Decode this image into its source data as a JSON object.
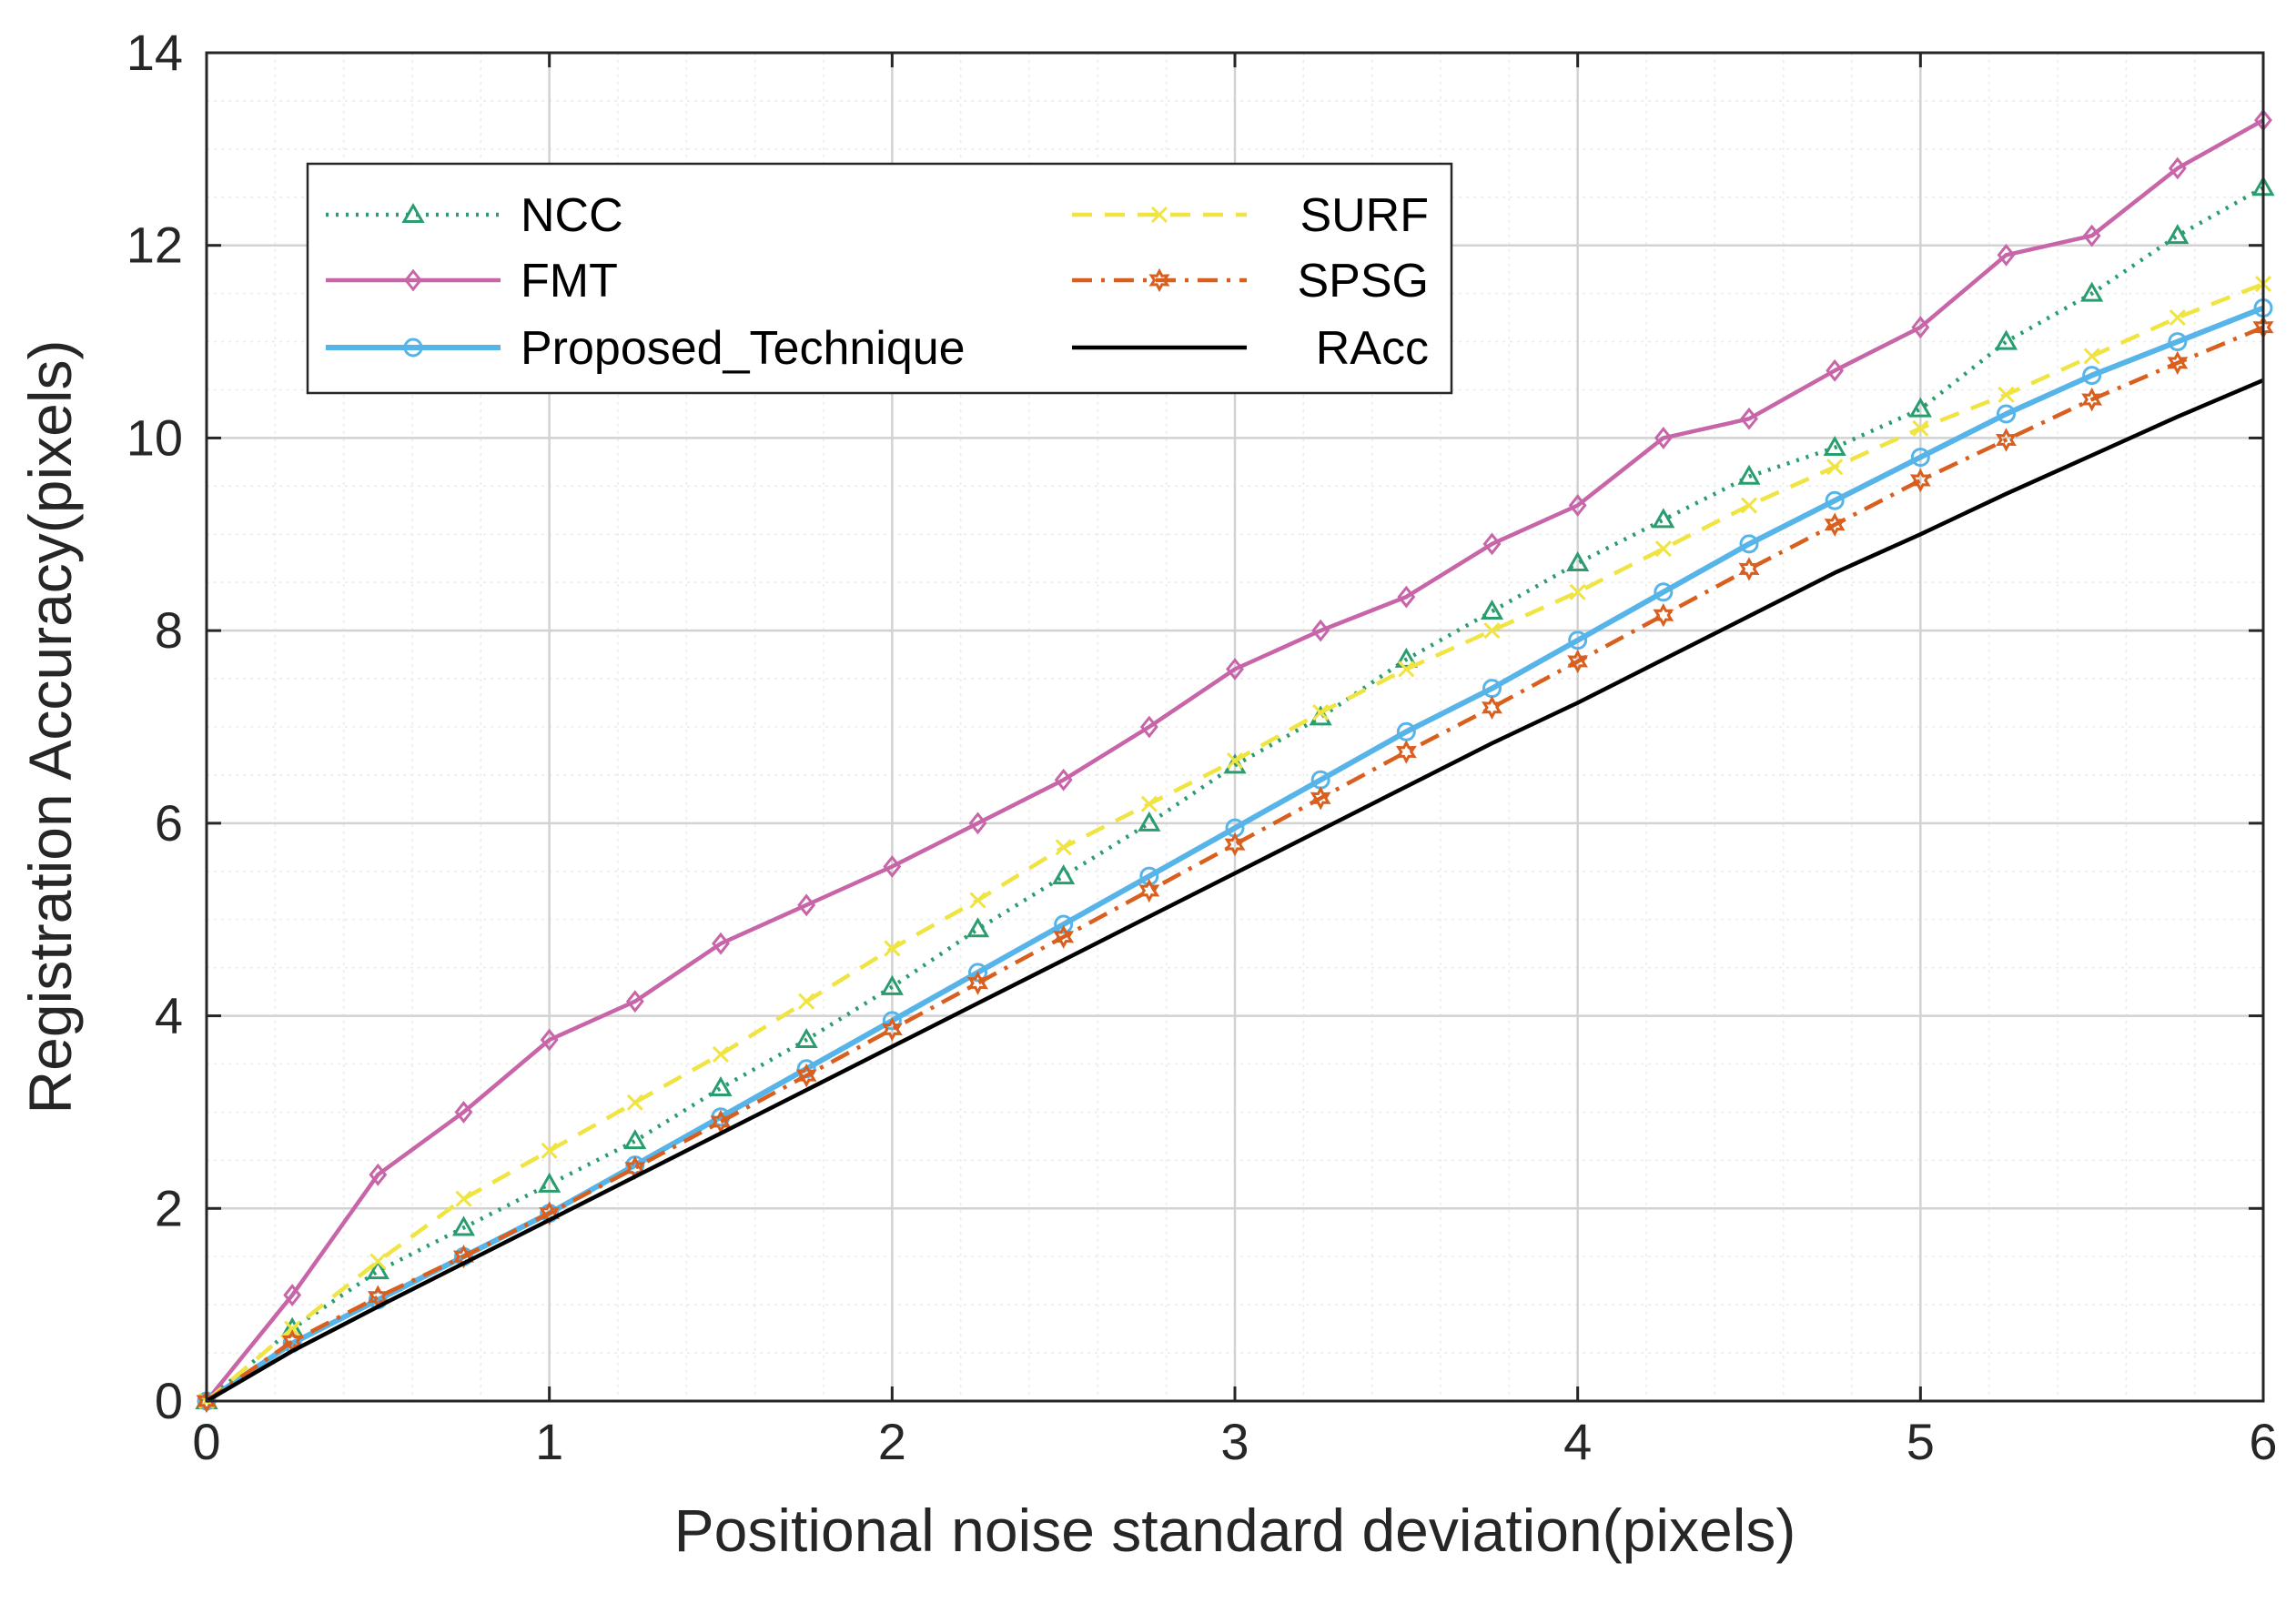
{
  "chart_data": {
    "type": "line",
    "title": "",
    "xlabel": "Positional noise standard deviation(pixels)",
    "ylabel": "Registration Accuracy(pixels)",
    "xlim": [
      0,
      6
    ],
    "ylim": [
      0,
      14
    ],
    "xticks": [
      0,
      1,
      2,
      3,
      4,
      5,
      6
    ],
    "yticks": [
      0,
      2,
      4,
      6,
      8,
      10,
      12,
      14
    ],
    "xtick_labels": [
      "0",
      "1",
      "2",
      "3",
      "4",
      "5",
      "6"
    ],
    "ytick_labels": [
      "0",
      "2",
      "4",
      "6",
      "8",
      "10",
      "12",
      "14"
    ],
    "grid": true,
    "minor_grid": true,
    "legend_position": "top-left",
    "x": [
      0,
      0.25,
      0.5,
      0.75,
      1,
      1.25,
      1.5,
      1.75,
      2,
      2.25,
      2.5,
      2.75,
      3,
      3.25,
      3.5,
      3.75,
      4,
      4.25,
      4.5,
      4.75,
      5,
      5.25,
      5.5,
      5.75,
      6
    ],
    "series": [
      {
        "name": "NCC",
        "color": "#2a9d6f",
        "dash": "dotted",
        "marker": "triangle",
        "values": [
          0,
          0.75,
          1.35,
          1.8,
          2.25,
          2.7,
          3.25,
          3.75,
          4.3,
          4.9,
          5.45,
          6.0,
          6.6,
          7.1,
          7.7,
          8.2,
          8.7,
          9.15,
          9.6,
          9.9,
          10.3,
          11.0,
          11.5,
          12.1,
          12.6
        ]
      },
      {
        "name": "FMT",
        "color": "#c765a8",
        "dash": "solid",
        "marker": "diamond",
        "values": [
          0,
          1.1,
          2.35,
          3.0,
          3.75,
          4.15,
          4.75,
          5.15,
          5.55,
          6.0,
          6.45,
          7.0,
          7.6,
          8.0,
          8.35,
          8.9,
          9.3,
          10.0,
          10.2,
          10.7,
          11.15,
          11.9,
          12.1,
          12.8,
          13.3
        ]
      },
      {
        "name": "Proposed_Technique",
        "color": "#56b4e9",
        "dash": "solid",
        "marker": "circle",
        "values": [
          0,
          0.6,
          1.05,
          1.5,
          1.95,
          2.45,
          2.95,
          3.45,
          3.95,
          4.45,
          4.95,
          5.45,
          5.95,
          6.45,
          6.95,
          7.4,
          7.9,
          8.4,
          8.9,
          9.35,
          9.8,
          10.25,
          10.65,
          11.0,
          11.35
        ]
      },
      {
        "name": "SURF",
        "color": "#f0e442",
        "dash": "dashed",
        "marker": "x",
        "values": [
          0,
          0.75,
          1.45,
          2.1,
          2.6,
          3.1,
          3.6,
          4.15,
          4.7,
          5.2,
          5.75,
          6.2,
          6.65,
          7.15,
          7.6,
          8.0,
          8.4,
          8.85,
          9.3,
          9.7,
          10.1,
          10.45,
          10.85,
          11.25,
          11.6
        ]
      },
      {
        "name": "SPSG",
        "color": "#d95f1e",
        "dash": "dashdot",
        "marker": "hexagram",
        "values": [
          0,
          0.62,
          1.08,
          1.5,
          1.95,
          2.42,
          2.9,
          3.38,
          3.86,
          4.34,
          4.82,
          5.3,
          5.78,
          6.26,
          6.74,
          7.2,
          7.68,
          8.16,
          8.64,
          9.1,
          9.56,
          9.98,
          10.4,
          10.78,
          11.15
        ]
      },
      {
        "name": "RAcc",
        "color": "#000000",
        "dash": "solid",
        "marker": "none",
        "values": [
          0,
          0.52,
          0.98,
          1.43,
          1.88,
          2.33,
          2.78,
          3.23,
          3.68,
          4.13,
          4.58,
          5.03,
          5.48,
          5.93,
          6.38,
          6.83,
          7.25,
          7.7,
          8.15,
          8.6,
          9.0,
          9.42,
          9.82,
          10.22,
          10.6
        ]
      }
    ]
  }
}
